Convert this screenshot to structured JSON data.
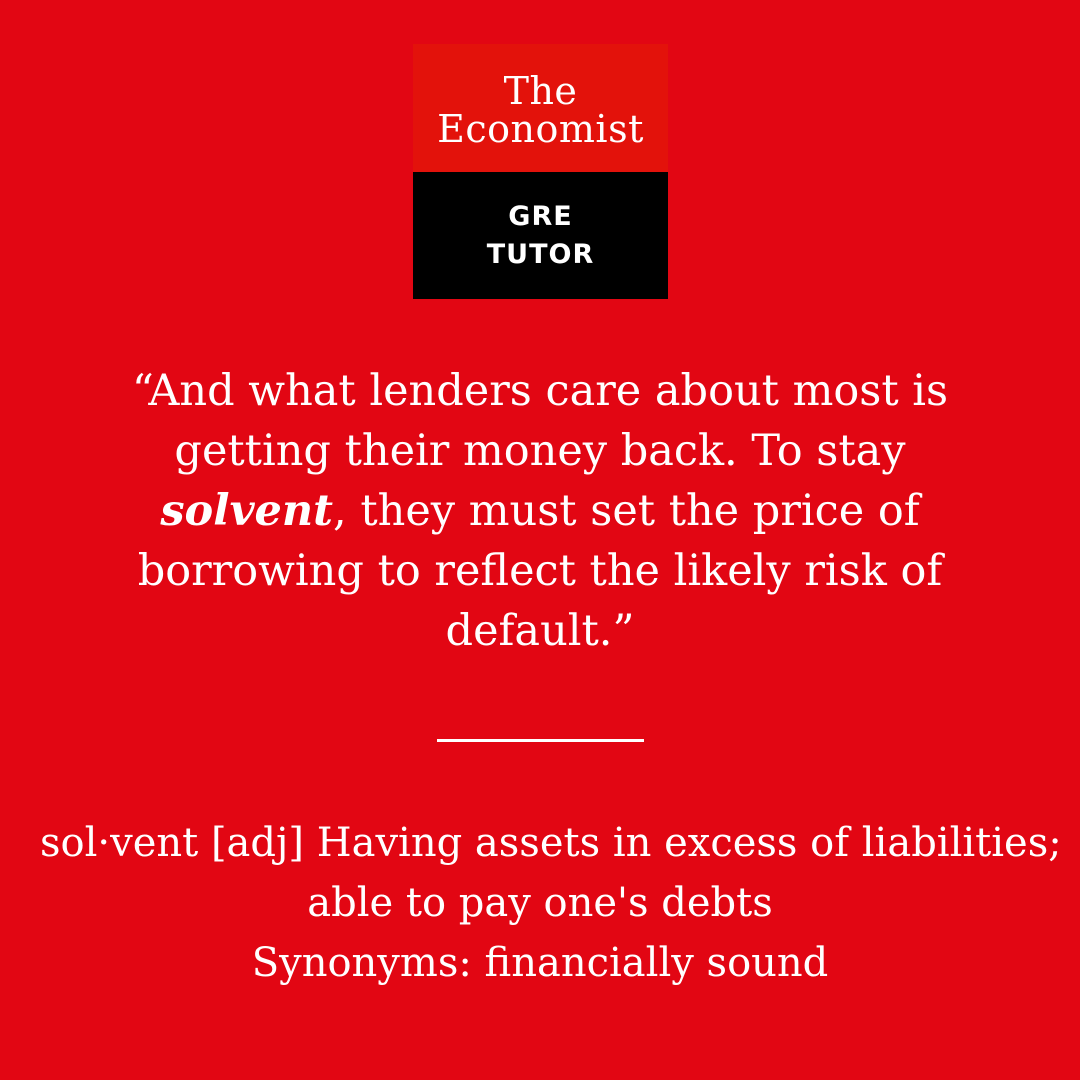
{
  "colors": {
    "background": "#E20613",
    "logo_top": "#E3120B",
    "logo_bottom": "#000000",
    "text": "#FFFFFF"
  },
  "logo": {
    "line1": "The",
    "line2": "Economist",
    "badge_line1": "GRE",
    "badge_line2": "TUTOR"
  },
  "quote": {
    "before": "“And what lenders care about most is getting their money back. To stay ",
    "term": "solvent",
    "after": ", they must set the price of borrowing to reflect the likely risk of default.”"
  },
  "definition": {
    "line1": "sol·vent [adj] Having assets in excess of liabilities;",
    "line2": "able to pay one's debts",
    "synonyms": "Synonyms: financially sound"
  }
}
